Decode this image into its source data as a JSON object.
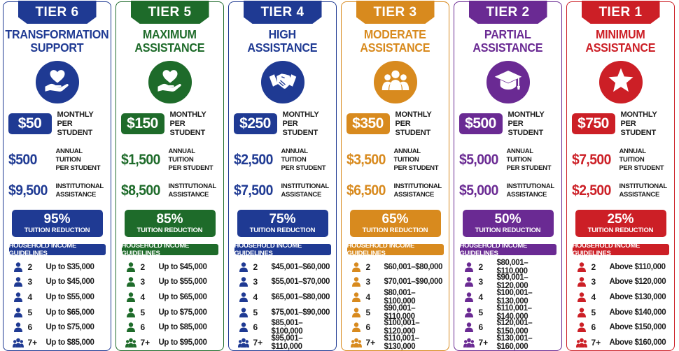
{
  "tiers": [
    {
      "tier": "TIER 6",
      "name1": "TRANSFORMATION",
      "name2": "SUPPORT",
      "color": "#1f3a93",
      "icon": "heart-hand-icon",
      "monthly": "$50",
      "monthly_l1": "MONTHLY",
      "monthly_l2": "PER STUDENT",
      "annual": "$500",
      "annual_l1": "ANNUAL TUITION",
      "annual_l2": "PER STUDENT",
      "inst": "$9,500",
      "inst_l1": "INSTITUTIONAL",
      "inst_l2": "ASSISTANCE",
      "pct": "95%",
      "red_label": "TUITION REDUCTION",
      "hig": "HOUSEHOLD INCOME GUIDELINES",
      "rows": [
        [
          "2",
          "Up to $35,000"
        ],
        [
          "3",
          "Up to $45,000"
        ],
        [
          "4",
          "Up to $55,000"
        ],
        [
          "5",
          "Up to $65,000"
        ],
        [
          "6",
          "Up to $75,000"
        ],
        [
          "7+",
          "Up to $85,000"
        ]
      ]
    },
    {
      "tier": "TIER 5",
      "name1": "MAXIMUM",
      "name2": "ASSISTANCE",
      "color": "#1e6b2a",
      "icon": "heart-hand-icon",
      "monthly": "$150",
      "monthly_l1": "MONTHLY",
      "monthly_l2": "PER STUDENT",
      "annual": "$1,500",
      "annual_l1": "ANNUAL TUITION",
      "annual_l2": "PER STUDENT",
      "inst": "$8,500",
      "inst_l1": "INSTITUTIONAL",
      "inst_l2": "ASSISTANCE",
      "pct": "85%",
      "red_label": "TUITION REDUCTION",
      "hig": "HOUSEHOLD INCOME GUIDELINES",
      "rows": [
        [
          "2",
          "Up to $45,000"
        ],
        [
          "3",
          "Up to $55,000"
        ],
        [
          "4",
          "Up to $65,000"
        ],
        [
          "5",
          "Up to $75,000"
        ],
        [
          "6",
          "Up to $85,000"
        ],
        [
          "7+",
          "Up to $95,000"
        ]
      ]
    },
    {
      "tier": "TIER 4",
      "name1": "HIGH",
      "name2": "ASSISTANCE",
      "color": "#1f3a93",
      "icon": "handshake-icon",
      "monthly": "$250",
      "monthly_l1": "MONTHLY",
      "monthly_l2": "PER STUDENT",
      "annual": "$2,500",
      "annual_l1": "ANNUAL TUITION",
      "annual_l2": "PER STUDENT",
      "inst": "$7,500",
      "inst_l1": "INSTITUTIONAL",
      "inst_l2": "ASSISTANCE",
      "pct": "75%",
      "red_label": "TUITION REDUCTION",
      "hig": "HOUSEHOLD INCOME GUIDELINES",
      "rows": [
        [
          "2",
          "$45,001–$60,000"
        ],
        [
          "3",
          "$55,001–$70,000"
        ],
        [
          "4",
          "$65,001–$80,000"
        ],
        [
          "5",
          "$75,001–$90,000"
        ],
        [
          "6",
          "$85,001–$100,000"
        ],
        [
          "7+",
          "$95,001–$110,000"
        ]
      ]
    },
    {
      "tier": "TIER 3",
      "name1": "MODERATE",
      "name2": "ASSISTANCE",
      "color": "#d88a1e",
      "icon": "group-icon",
      "monthly": "$350",
      "monthly_l1": "MONTHLY",
      "monthly_l2": "PER STUDENT",
      "annual": "$3,500",
      "annual_l1": "ANNUAL TUITION",
      "annual_l2": "PER STUDENT",
      "inst": "$6,500",
      "inst_l1": "INSTITUTIONAL",
      "inst_l2": "ASSISTANCE",
      "pct": "65%",
      "red_label": "TUITION REDUCTION",
      "hig": "HOUSEHOLD INCOME GUIDELINES",
      "rows": [
        [
          "2",
          "$60,001–$80,000"
        ],
        [
          "3",
          "$70,001–$90,000"
        ],
        [
          "4",
          "$80,001–$100,000"
        ],
        [
          "5",
          "$90,001–$110,000"
        ],
        [
          "6",
          "$100,001–$120,000"
        ],
        [
          "7+",
          "$110,001–$130,000"
        ]
      ]
    },
    {
      "tier": "TIER 2",
      "name1": "PARTIAL",
      "name2": "ASSISTANCE",
      "color": "#6a2a93",
      "icon": "graduation-cap-icon",
      "monthly": "$500",
      "monthly_l1": "MONTHLY",
      "monthly_l2": "PER STUDENT",
      "annual": "$5,000",
      "annual_l1": "ANNUAL TUITION",
      "annual_l2": "PER STUDENT",
      "inst": "$5,000",
      "inst_l1": "INSTITUTIONAL",
      "inst_l2": "ASSISTANCE",
      "pct": "50%",
      "red_label": "TUITION REDUCTION",
      "hig": "HOUSEHOLD INCOME GUIDELINES",
      "rows": [
        [
          "2",
          "$80,001–$110,000"
        ],
        [
          "3",
          "$90,001–$120,000"
        ],
        [
          "4",
          "$100,001–$130,000"
        ],
        [
          "5",
          "$110,001–$140,000"
        ],
        [
          "6",
          "$120,001–$150,000"
        ],
        [
          "7+",
          "$130,001–$160,000"
        ]
      ]
    },
    {
      "tier": "TIER 1",
      "name1": "MINIMUM",
      "name2": "ASSISTANCE",
      "color": "#cc1f26",
      "icon": "star-icon",
      "monthly": "$750",
      "monthly_l1": "MONTHLY",
      "monthly_l2": "PER STUDENT",
      "annual": "$7,500",
      "annual_l1": "ANNUAL TUITION",
      "annual_l2": "PER STUDENT",
      "inst": "$2,500",
      "inst_l1": "INSTITUTIONAL",
      "inst_l2": "ASSISTANCE",
      "pct": "25%",
      "red_label": "TUITION REDUCTION",
      "hig": "HOUSEHOLD INCOME GUIDELINES",
      "rows": [
        [
          "2",
          "Above $110,000"
        ],
        [
          "3",
          "Above $120,000"
        ],
        [
          "4",
          "Above $130,000"
        ],
        [
          "5",
          "Above $140,000"
        ],
        [
          "6",
          "Above $150,000"
        ],
        [
          "7+",
          "Above $160,000"
        ]
      ]
    }
  ]
}
